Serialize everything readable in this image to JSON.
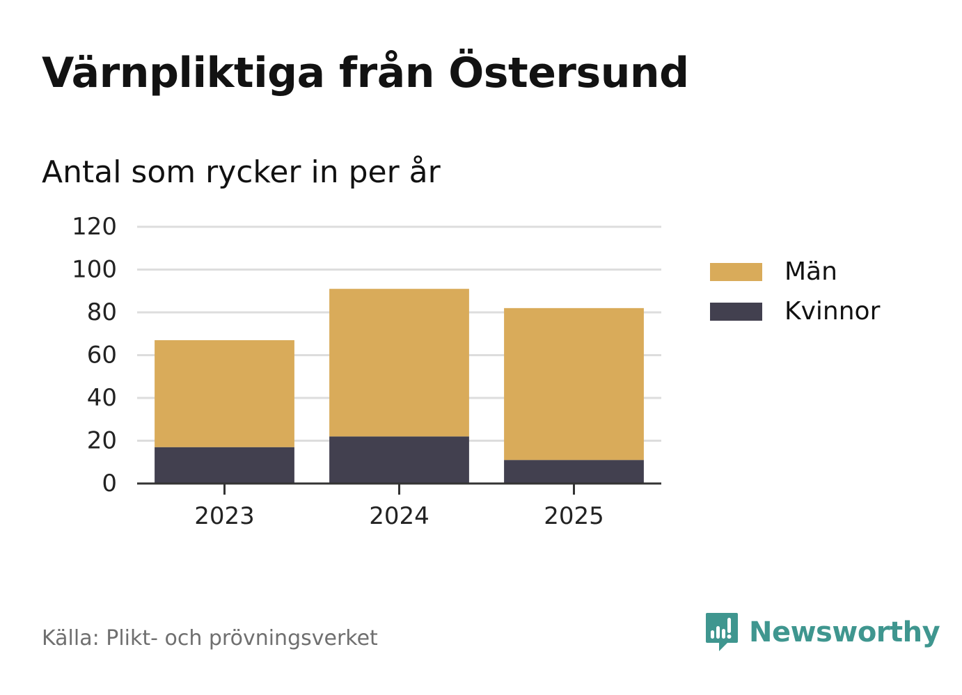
{
  "title": "Värnpliktiga från Östersund",
  "subtitle": "Antal som rycker in per år",
  "source": "Källa: Plikt- och prövningsverket",
  "brand": {
    "name": "Newsworthy",
    "icon": "newsworthy-logo-icon",
    "color": "#3f968f"
  },
  "colors": {
    "man": "#d9ab5a",
    "kvinnor": "#42404f",
    "grid": "#dddddd",
    "axis": "#333333"
  },
  "chart_data": {
    "type": "bar",
    "stacked": true,
    "title": "Värnpliktiga från Östersund",
    "subtitle": "Antal som rycker in per år",
    "xlabel": "",
    "ylabel": "",
    "categories": [
      "2023",
      "2024",
      "2025"
    ],
    "series": [
      {
        "name": "Kvinnor",
        "color": "#42404f",
        "values": [
          17,
          22,
          11
        ]
      },
      {
        "name": "Män",
        "color": "#d9ab5a",
        "values": [
          50,
          69,
          71
        ]
      }
    ],
    "ylim": [
      0,
      120
    ],
    "yticks": [
      0,
      20,
      40,
      60,
      80,
      100,
      120
    ],
    "grid": true,
    "legend": {
      "position": "right",
      "entries": [
        {
          "label": "Män",
          "color": "#d9ab5a"
        },
        {
          "label": "Kvinnor",
          "color": "#42404f"
        }
      ]
    }
  }
}
